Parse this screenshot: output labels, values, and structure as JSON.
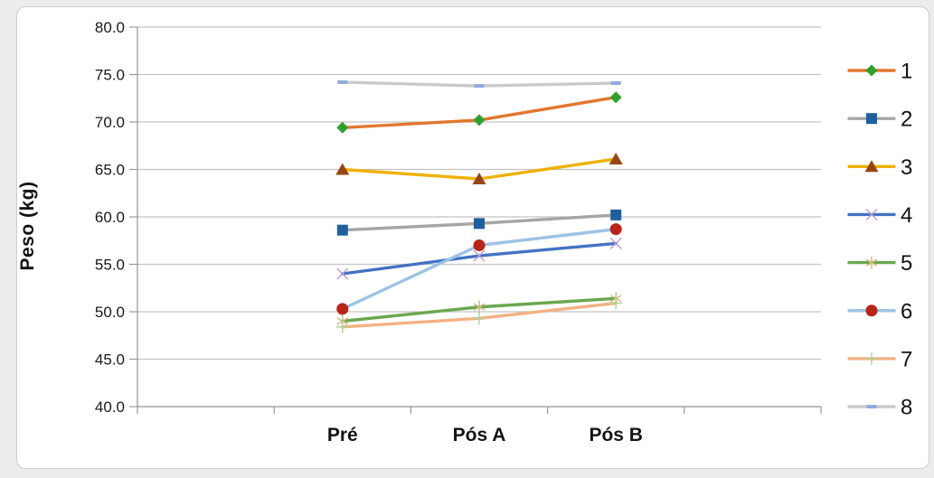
{
  "chart_data": {
    "type": "line",
    "title": "",
    "ylabel": "Peso (kg)",
    "xlabel": "",
    "categories": [
      "Pré",
      "Pós A",
      "Pós B"
    ],
    "ylim": [
      40,
      80
    ],
    "y_tick_step": 5,
    "y_tick_labels": [
      "40.0",
      "45.0",
      "50.0",
      "55.0",
      "60.0",
      "65.0",
      "70.0",
      "75.0",
      "80.0"
    ],
    "grid": true,
    "legend_position": "right",
    "series": [
      {
        "name": "1",
        "values": [
          69.4,
          70.2,
          72.6
        ],
        "line_color": "#e2772f",
        "marker": "diamond",
        "marker_color": "#2ea02e"
      },
      {
        "name": "2",
        "values": [
          58.6,
          59.3,
          60.2
        ],
        "line_color": "#a5a5a5",
        "marker": "square",
        "marker_color": "#1f5fa0"
      },
      {
        "name": "3",
        "values": [
          65.0,
          64.0,
          66.1
        ],
        "line_color": "#efb000",
        "marker": "triangle",
        "marker_color": "#964611"
      },
      {
        "name": "4",
        "values": [
          54.0,
          55.9,
          57.2
        ],
        "line_color": "#4472c4",
        "marker": "x",
        "marker_color": "#bf9bcf"
      },
      {
        "name": "5",
        "values": [
          49.0,
          50.5,
          51.4
        ],
        "line_color": "#6aa84f",
        "marker": "asterisk",
        "marker_color": "#cdb97c"
      },
      {
        "name": "6",
        "values": [
          50.3,
          57.0,
          58.7
        ],
        "line_color": "#9dc3e6",
        "marker": "circle",
        "marker_color": "#b92318"
      },
      {
        "name": "7",
        "values": [
          48.4,
          49.3,
          50.9
        ],
        "line_color": "#f4b183",
        "marker": "plus",
        "marker_color": "#aed494"
      },
      {
        "name": "8",
        "values": [
          74.2,
          73.8,
          74.1
        ],
        "line_color": "#c9c9c9",
        "marker": "dash",
        "marker_color": "#8faadc"
      }
    ],
    "colors": {
      "gridline": "#c3c3c3",
      "axis": "#9b9b9b",
      "text": "#141414",
      "frame_border": "#c9ced2",
      "background": "#ffffff"
    }
  }
}
